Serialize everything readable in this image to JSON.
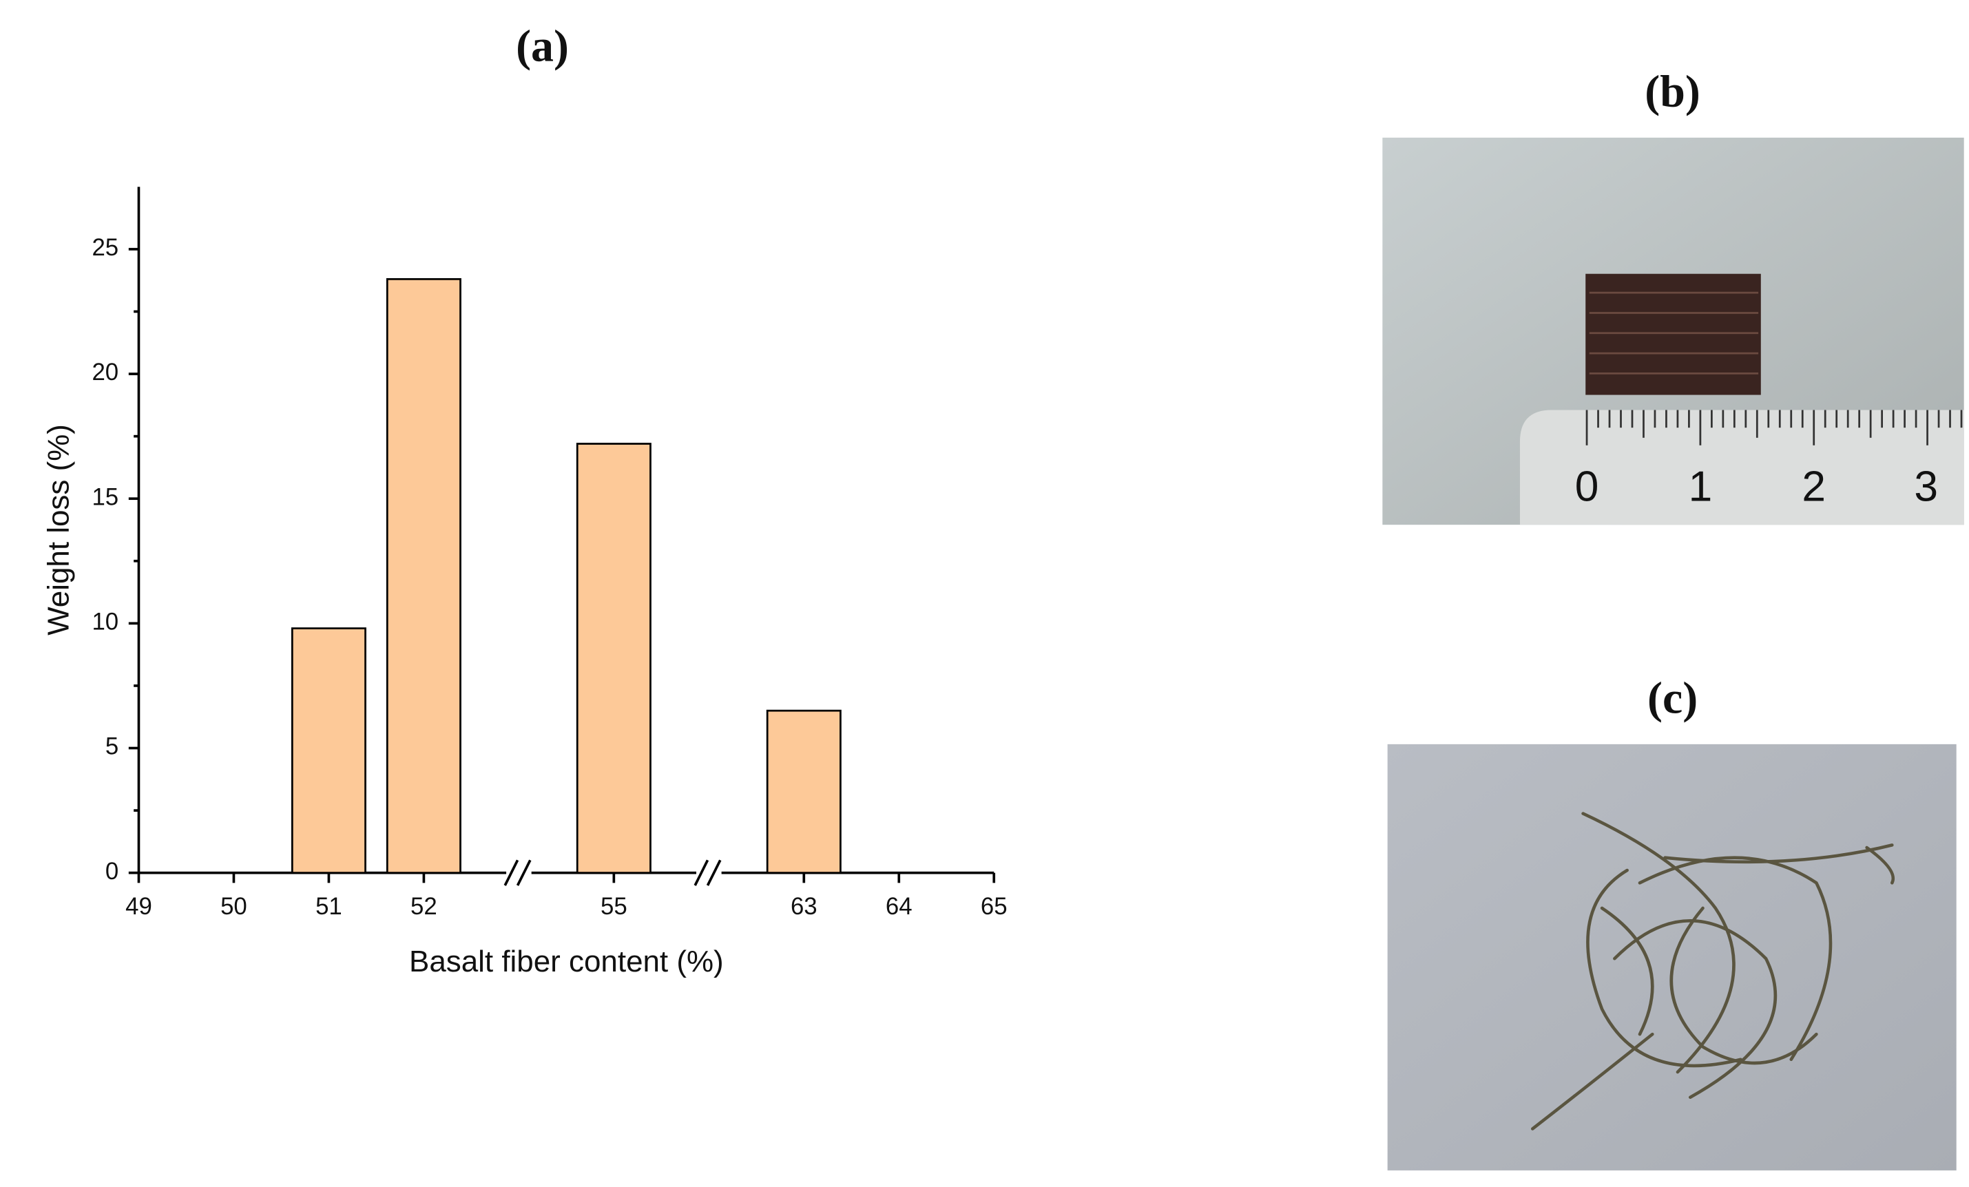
{
  "chart_data": {
    "type": "bar",
    "title": "(a)",
    "x_label": "Basalt fiber content (%)",
    "y_label": "Weight loss (%)",
    "categories": [
      "49",
      "50",
      "51",
      "52",
      null,
      "55",
      null,
      "63",
      "64",
      "65"
    ],
    "values": [
      null,
      null,
      9.8,
      23.8,
      null,
      17.2,
      null,
      6.5,
      null,
      null
    ],
    "color": "#fdc998",
    "ylim": [
      0,
      27.5
    ],
    "yticks": [
      0,
      5,
      10,
      15,
      20,
      25
    ],
    "grid": false
  },
  "panels": [
    {
      "label": "(b)",
      "ruler_labels": [
        "0",
        "1",
        "2",
        "3"
      ]
    },
    {
      "label": "(c)"
    }
  ]
}
